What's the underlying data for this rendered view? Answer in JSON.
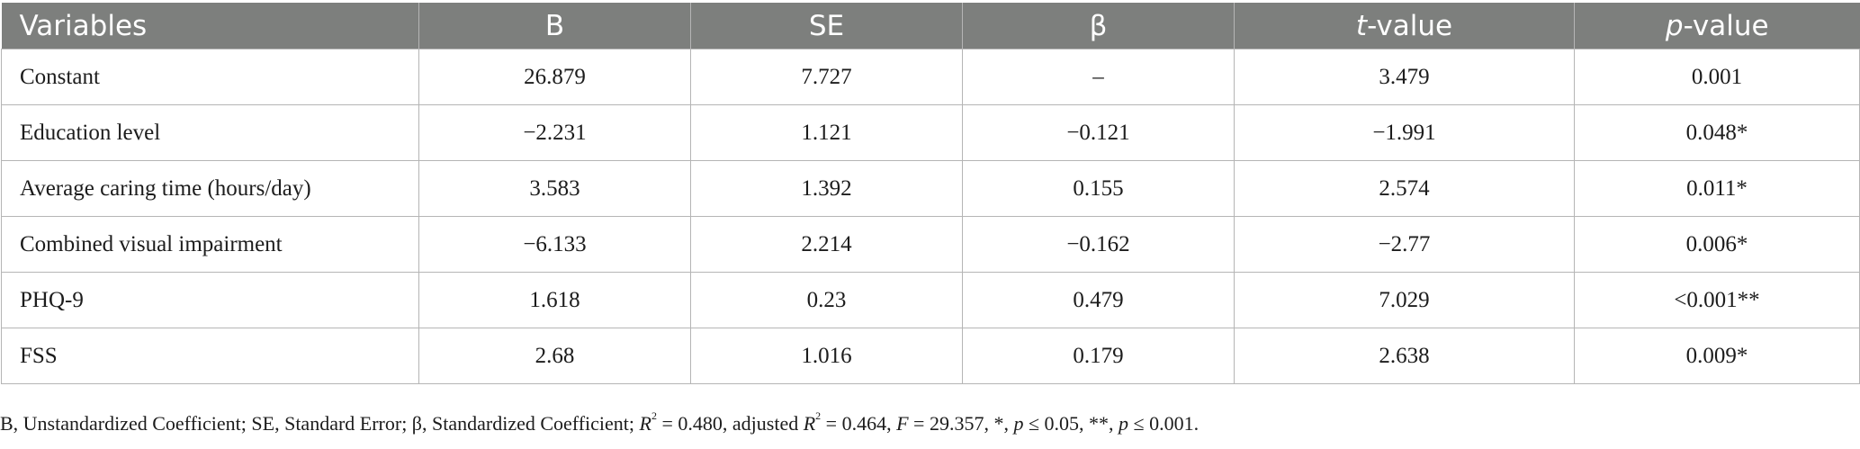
{
  "table": {
    "headers": {
      "variables": "Variables",
      "b": "B",
      "se": "SE",
      "beta": "β",
      "t_italic": "t",
      "t_rest": "-value",
      "p_italic": "p",
      "p_rest": "-value"
    },
    "rows": [
      [
        "Constant",
        "26.879",
        "7.727",
        "–",
        "3.479",
        "0.001"
      ],
      [
        "Education level",
        "−2.231",
        "1.121",
        "−0.121",
        "−1.991",
        "0.048*"
      ],
      [
        "Average caring time (hours/day)",
        "3.583",
        "1.392",
        "0.155",
        "2.574",
        "0.011*"
      ],
      [
        "Combined visual impairment",
        "−6.133",
        "2.214",
        "−0.162",
        "−2.77",
        "0.006*"
      ],
      [
        "PHQ-9",
        "1.618",
        "0.23",
        "0.479",
        "7.029",
        "<0.001**"
      ],
      [
        "FSS",
        "2.68",
        "1.016",
        "0.179",
        "2.638",
        "0.009*"
      ]
    ]
  },
  "footnote": {
    "part1": "B, Unstandardized Coefficient; SE, Standard Error; β, Standardized Coefficient; ",
    "r": "R",
    "sup1": "2",
    "part2": " = 0.480, adjusted ",
    "r2": "R",
    "sup2": "2",
    "part3": " = 0.464, ",
    "f": "F",
    "part4": " = 29.357, *, ",
    "p1": "p",
    "part5": " ≤ 0.05, **, ",
    "p2": "p",
    "part6": " ≤ 0.001."
  },
  "colors": {
    "header_bg": "#7d7f7d",
    "header_text": "#ffffff",
    "grid": "#b5b5b5"
  }
}
